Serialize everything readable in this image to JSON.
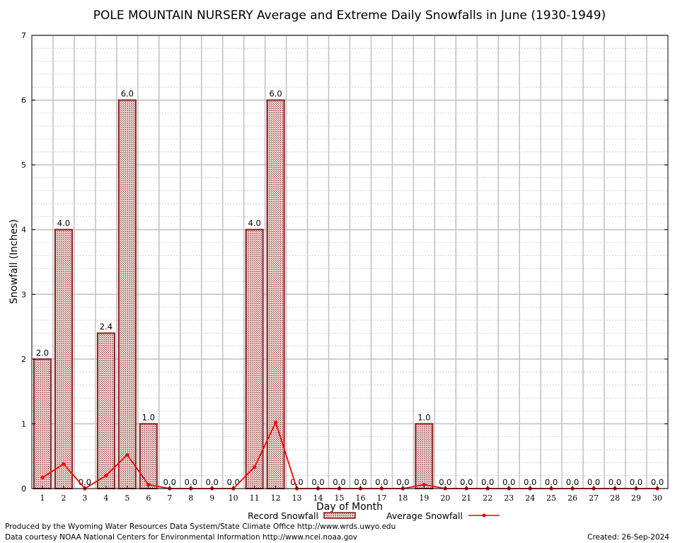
{
  "chart_data": {
    "type": "bar",
    "title": "POLE MOUNTAIN NURSERY Average and Extreme Daily Snowfalls in June (1930-1949)",
    "xlabel": "Day of Month",
    "ylabel": "Snowfall (Inches)",
    "ylim": [
      0,
      7
    ],
    "yticks": [
      "0",
      "1",
      "2",
      "3",
      "4",
      "5",
      "6",
      "7"
    ],
    "categories": [
      "1",
      "2",
      "3",
      "4",
      "5",
      "6",
      "7",
      "8",
      "9",
      "10",
      "11",
      "12",
      "13",
      "14",
      "15",
      "16",
      "17",
      "18",
      "19",
      "20",
      "21",
      "22",
      "23",
      "24",
      "25",
      "26",
      "27",
      "28",
      "29",
      "30"
    ],
    "series": [
      {
        "name": "Record Snowfall",
        "kind": "bar",
        "values": [
          2.0,
          4.0,
          0.0,
          2.4,
          6.0,
          1.0,
          0.0,
          0.0,
          0.0,
          0.0,
          4.0,
          6.0,
          0.0,
          0.0,
          0.0,
          0.0,
          0.0,
          0.0,
          1.0,
          0.0,
          0.0,
          0.0,
          0.0,
          0.0,
          0.0,
          0.0,
          0.0,
          0.0,
          0.0,
          0.0
        ],
        "labels": [
          "2.0",
          "4.0",
          "0.0",
          "2.4",
          "6.0",
          "1.0",
          "0.0",
          "0.0",
          "0.0",
          "0.0",
          "4.0",
          "6.0",
          "0.0",
          "0.0",
          "0.0",
          "0.0",
          "0.0",
          "0.0",
          "1.0",
          "0.0",
          "0.0",
          "0.0",
          "0.0",
          "0.0",
          "0.0",
          "0.0",
          "0.0",
          "0.0",
          "0.0",
          "0.0"
        ]
      },
      {
        "name": "Average Snowfall",
        "kind": "line",
        "values": [
          0.17,
          0.38,
          0.0,
          0.2,
          0.52,
          0.06,
          0.0,
          0.0,
          0.0,
          0.0,
          0.33,
          1.02,
          0.0,
          0.0,
          0.0,
          0.0,
          0.0,
          0.0,
          0.06,
          0.0,
          0.0,
          0.0,
          0.0,
          0.0,
          0.0,
          0.0,
          0.0,
          0.0,
          0.0,
          0.0
        ]
      }
    ],
    "grid": true,
    "legend": "bottom-center",
    "colors": {
      "bar_stroke": "#8b1a1a",
      "bar_fill": "#c9a39a",
      "line": "#ff0000",
      "grid_major": "#c0c0c0",
      "grid_minor": "#c8c8c8"
    }
  },
  "footer": {
    "credit_line1": "Produced by the Wyoming Water Resources Data System/State Climate Office http://www.wrds.uwyo.edu",
    "credit_line2": "Data courtesy NOAA National Centers for Environmental Information http://www.ncei.noaa.gov",
    "created": "Created:  26-Sep-2024"
  }
}
